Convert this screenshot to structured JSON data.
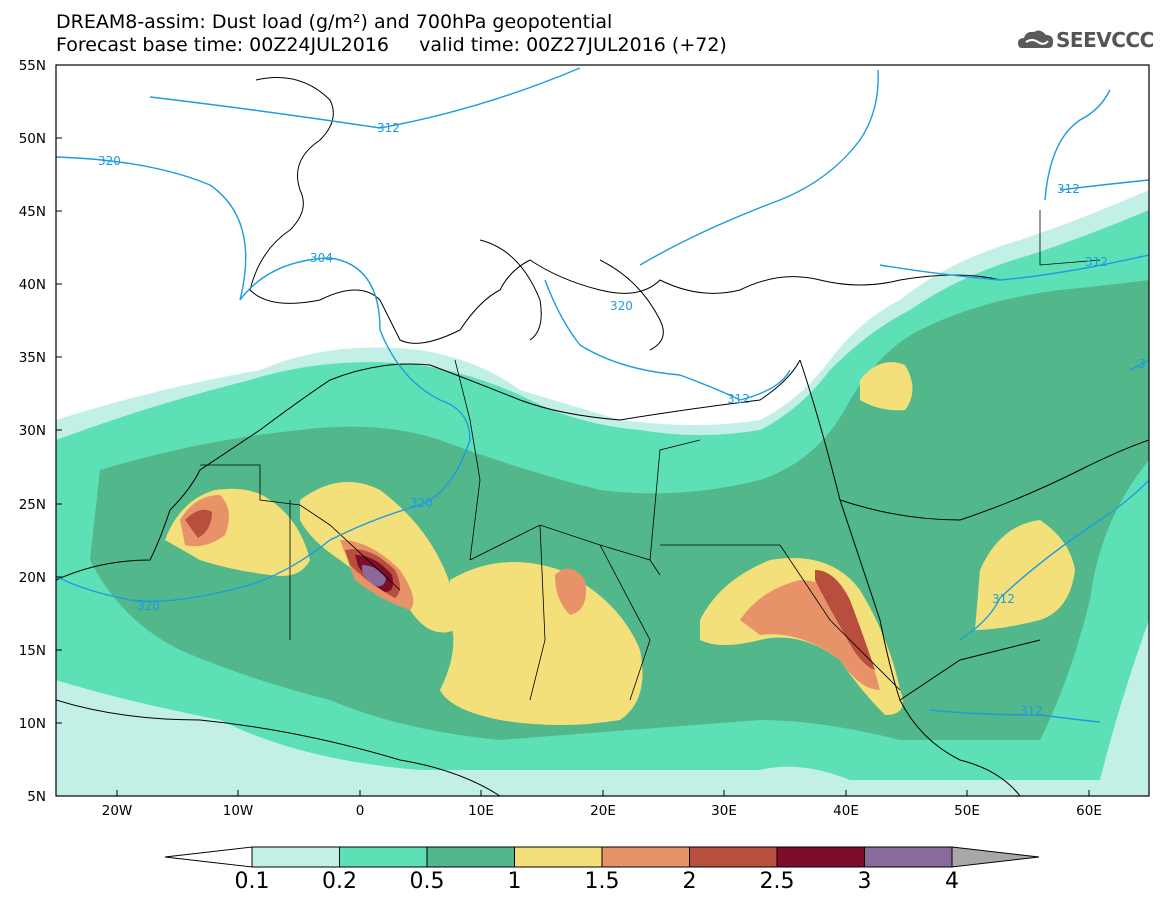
{
  "title": {
    "line1": "DREAM8-assim: Dust load (g/m²) and 700hPa geopotential",
    "line2": "Forecast base time: 00Z24JUL2016     valid time: 00Z27JUL2016 (+72)"
  },
  "logo": {
    "text": "SEEVCCC",
    "icon": "cloud-logo-icon"
  },
  "axes": {
    "lat_labels": [
      "55N",
      "50N",
      "45N",
      "40N",
      "35N",
      "30N",
      "25N",
      "20N",
      "15N",
      "10N",
      "5N"
    ],
    "lon_labels": [
      "20W",
      "10W",
      "0",
      "10E",
      "20E",
      "30E",
      "40E",
      "50E",
      "60E"
    ]
  },
  "contours": {
    "color": "#1f9bdf",
    "labels": [
      "312",
      "320",
      "304",
      "312",
      "312",
      "320",
      "320",
      "320",
      "312",
      "312",
      "312",
      "3"
    ]
  },
  "colorbar": {
    "ticks": [
      "0.1",
      "0.2",
      "0.5",
      "1",
      "1.5",
      "2",
      "2.5",
      "3",
      "4"
    ],
    "colors": [
      "#ffffff",
      "#c2efe6",
      "#5ee0b6",
      "#52b88c",
      "#f3e07a",
      "#e8926a",
      "#b84e3e",
      "#7e0c2a",
      "#8a6a9c",
      "#a8a8a8"
    ]
  }
}
